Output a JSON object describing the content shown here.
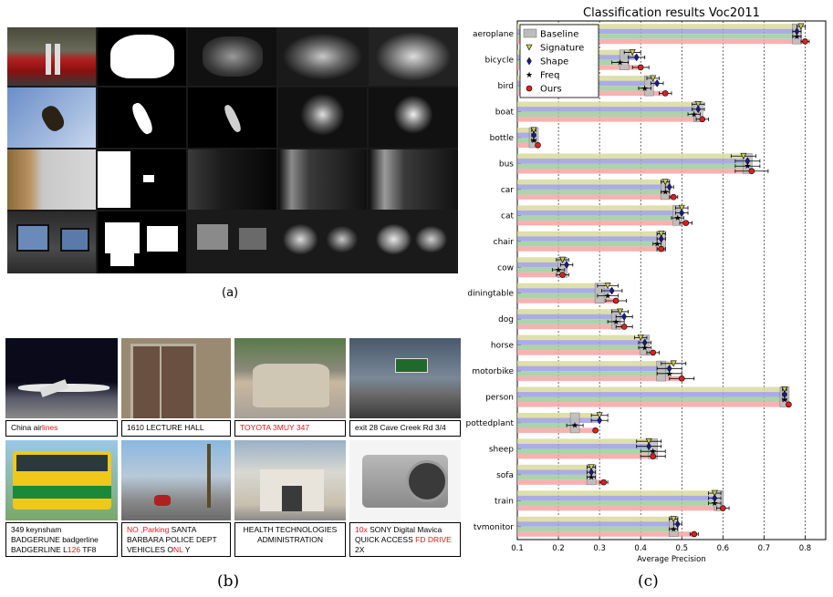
{
  "labels": {
    "a": "(a)",
    "b": "(b)",
    "c": "(c)"
  },
  "panel_b": {
    "captions": [
      {
        "segments": [
          {
            "t": "China air",
            "red": false
          },
          {
            "t": "lines",
            "red": true
          }
        ]
      },
      {
        "segments": [
          {
            "t": "1610 LECTURE HALL",
            "red": false
          }
        ]
      },
      {
        "segments": [
          {
            "t": "TOYOTA   3MUY 347",
            "red": true
          }
        ]
      },
      {
        "segments": [
          {
            "t": "exit 28 Cave Creek Rd 3/4",
            "red": false
          }
        ]
      },
      {
        "lines": [
          [
            {
              "t": "349 keynsham",
              "red": false
            }
          ],
          [
            {
              "t": "BADGERUNE badgerline",
              "red": false
            }
          ],
          [
            {
              "t": "BADGERLINE L",
              "red": false
            },
            {
              "t": "126",
              "red": true
            },
            {
              "t": " TF8",
              "red": false
            }
          ]
        ]
      },
      {
        "lines": [
          [
            {
              "t": "NO",
              "red": true
            },
            {
              "t": " ",
              "red": false
            },
            {
              "t": ",Parking",
              "red": true
            },
            {
              "t": " SANTA",
              "red": false
            }
          ],
          [
            {
              "t": "BARBARA POLICE DEPT",
              "red": false
            }
          ],
          [
            {
              "t": "VEHICLES O",
              "red": false
            },
            {
              "t": "NL",
              "red": true
            },
            {
              "t": " Y",
              "red": false
            }
          ]
        ]
      },
      {
        "lines": [
          [
            {
              "t": "HEALTH TECHNOLOGIES",
              "red": false
            }
          ],
          [
            {
              "t": "ADMINISTRATION",
              "red": false
            }
          ]
        ]
      },
      {
        "lines": [
          [
            {
              "t": "10x",
              "red": true
            },
            {
              "t": " SONY Digital Mavica",
              "red": false
            }
          ],
          [
            {
              "t": "QUICK ACCESS ",
              "red": false
            },
            {
              "t": "FD",
              "red": true
            },
            {
              "t": " ",
              "red": false
            },
            {
              "t": "DRIVE",
              "red": true
            }
          ],
          [
            {
              "t": "2X",
              "red": false
            }
          ]
        ]
      }
    ]
  },
  "chart_data": {
    "type": "bar",
    "orientation": "horizontal",
    "title": "Classification results Voc2011",
    "xlabel": "Average Precision",
    "ylabel": "",
    "xlim": [
      0.1,
      0.85
    ],
    "xticks": [
      "0.1",
      "0.2",
      "0.3",
      "0.4",
      "0.5",
      "0.6",
      "0.7",
      "0.8"
    ],
    "grid": true,
    "legend_position": "top-left",
    "categories": [
      "aeroplane",
      "bicycle",
      "bird",
      "boat",
      "bottle",
      "bus",
      "car",
      "cat",
      "chair",
      "cow",
      "diningtable",
      "dog",
      "horse",
      "motorbike",
      "person",
      "pottedplant",
      "sheep",
      "sofa",
      "train",
      "tvmonitor"
    ],
    "series": [
      {
        "name": "Baseline",
        "color": "#c0c0c0",
        "marker": "box",
        "values": [
          0.78,
          0.36,
          0.42,
          0.54,
          0.14,
          0.66,
          0.46,
          0.49,
          0.45,
          0.21,
          0.3,
          0.34,
          0.41,
          0.45,
          0.75,
          0.24,
          0.43,
          0.28,
          0.59,
          0.48
        ],
        "errors": [
          0.015,
          0.02,
          0.02,
          0.015,
          0.005,
          0.03,
          0.01,
          0.015,
          0.01,
          0.015,
          0.025,
          0.02,
          0.015,
          0.03,
          0.005,
          0.02,
          0.03,
          0.01,
          0.015,
          0.01
        ]
      },
      {
        "name": "Signature",
        "color": "#d9d99b",
        "marker": "triangle",
        "values": [
          0.79,
          0.38,
          0.43,
          0.54,
          0.14,
          0.65,
          0.46,
          0.5,
          0.45,
          0.21,
          0.32,
          0.35,
          0.4,
          0.48,
          0.75,
          0.3,
          0.42,
          0.28,
          0.58,
          0.48
        ],
        "errors": [
          0.01,
          0.02,
          0.015,
          0.015,
          0.005,
          0.03,
          0.01,
          0.015,
          0.01,
          0.015,
          0.025,
          0.02,
          0.015,
          0.03,
          0.005,
          0.02,
          0.03,
          0.01,
          0.015,
          0.01
        ]
      },
      {
        "name": "Shape",
        "color": "#9d9ddf",
        "marker": "diamond",
        "values": [
          0.78,
          0.39,
          0.44,
          0.54,
          0.14,
          0.66,
          0.47,
          0.5,
          0.45,
          0.22,
          0.33,
          0.36,
          0.41,
          0.47,
          0.75,
          0.3,
          0.42,
          0.28,
          0.58,
          0.49
        ],
        "errors": [
          0.01,
          0.02,
          0.015,
          0.015,
          0.005,
          0.03,
          0.01,
          0.015,
          0.01,
          0.015,
          0.025,
          0.02,
          0.015,
          0.03,
          0.005,
          0.02,
          0.03,
          0.01,
          0.015,
          0.01
        ]
      },
      {
        "name": "Freq",
        "color": "#9bcc9b",
        "marker": "star",
        "values": [
          0.78,
          0.35,
          0.41,
          0.53,
          0.14,
          0.66,
          0.46,
          0.49,
          0.44,
          0.2,
          0.32,
          0.34,
          0.41,
          0.47,
          0.75,
          0.24,
          0.43,
          0.28,
          0.58,
          0.48
        ],
        "errors": [
          0.01,
          0.02,
          0.015,
          0.015,
          0.005,
          0.03,
          0.01,
          0.015,
          0.01,
          0.015,
          0.025,
          0.02,
          0.015,
          0.03,
          0.005,
          0.02,
          0.03,
          0.01,
          0.015,
          0.01
        ]
      },
      {
        "name": "Ours",
        "color": "#f4a4a4",
        "marker": "circle",
        "values": [
          0.8,
          0.4,
          0.46,
          0.55,
          0.15,
          0.67,
          0.48,
          0.51,
          0.45,
          0.21,
          0.34,
          0.36,
          0.43,
          0.5,
          0.76,
          0.29,
          0.43,
          0.31,
          0.6,
          0.53
        ],
        "errors": [
          0.01,
          0.02,
          0.015,
          0.015,
          0.005,
          0.04,
          0.01,
          0.015,
          0.01,
          0.015,
          0.025,
          0.02,
          0.015,
          0.03,
          0.005,
          0.005,
          0.03,
          0.01,
          0.015,
          0.01
        ]
      }
    ]
  }
}
